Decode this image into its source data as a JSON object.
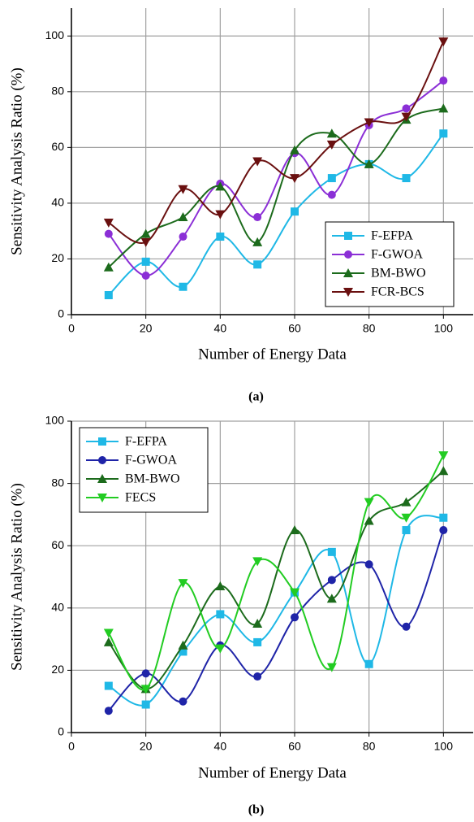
{
  "chart_data": [
    {
      "type": "line",
      "caption": "(a)",
      "x_label": "Number of Energy Data",
      "y_label": "Sensitivity Analysis Ratio (%)",
      "x": [
        10,
        20,
        30,
        40,
        50,
        60,
        70,
        80,
        90,
        100
      ],
      "xlim": [
        0,
        108
      ],
      "ylim": [
        0,
        110
      ],
      "xticks": [
        0,
        20,
        40,
        60,
        80,
        100
      ],
      "yticks": [
        0,
        20,
        40,
        60,
        80,
        100
      ],
      "grid": true,
      "legend": "lower right",
      "series": [
        {
          "name": "F-EFPA",
          "color": "#1fb8e6",
          "marker": "square",
          "values": [
            7,
            19,
            10,
            28,
            18,
            37,
            49,
            54,
            49,
            65
          ]
        },
        {
          "name": "F-GWOA",
          "color": "#8b2fd6",
          "marker": "circle",
          "values": [
            29,
            14,
            28,
            47,
            35,
            58,
            43,
            68,
            74,
            84
          ]
        },
        {
          "name": "BM-BWO",
          "color": "#1c6b1c",
          "marker": "triangle",
          "values": [
            17,
            29,
            35,
            46,
            26,
            59,
            65,
            54,
            70,
            74
          ]
        },
        {
          "name": "FCR-BCS",
          "color": "#6a1010",
          "marker": "triangle-down",
          "values": [
            33,
            26,
            45,
            36,
            55,
            49,
            61,
            69,
            71,
            98
          ]
        }
      ]
    },
    {
      "type": "line",
      "caption": "(b)",
      "x_label": "Number of Energy Data",
      "y_label": "Sensitivity Analysis Ratio (%)",
      "x": [
        10,
        20,
        30,
        40,
        50,
        60,
        70,
        80,
        90,
        100
      ],
      "xlim": [
        0,
        108
      ],
      "ylim": [
        0,
        100
      ],
      "xticks": [
        0,
        20,
        40,
        60,
        80,
        100
      ],
      "yticks": [
        0,
        20,
        40,
        60,
        80,
        100
      ],
      "grid": true,
      "legend": "upper left",
      "series": [
        {
          "name": "F-EFPA",
          "color": "#1fb8e6",
          "marker": "square",
          "values": [
            15,
            9,
            26,
            38,
            29,
            45,
            58,
            22,
            65,
            69
          ]
        },
        {
          "name": "F-GWOA",
          "color": "#1f24a8",
          "marker": "circle",
          "values": [
            7,
            19,
            10,
            28,
            18,
            37,
            49,
            54,
            34,
            65
          ]
        },
        {
          "name": "BM-BWO",
          "color": "#1c6b1c",
          "marker": "triangle",
          "values": [
            29,
            14,
            28,
            47,
            35,
            65,
            43,
            68,
            74,
            84
          ]
        },
        {
          "name": "FECS",
          "color": "#22cc22",
          "marker": "triangle-down",
          "values": [
            32,
            14,
            48,
            27,
            55,
            45,
            21,
            74,
            69,
            89
          ]
        }
      ]
    }
  ]
}
